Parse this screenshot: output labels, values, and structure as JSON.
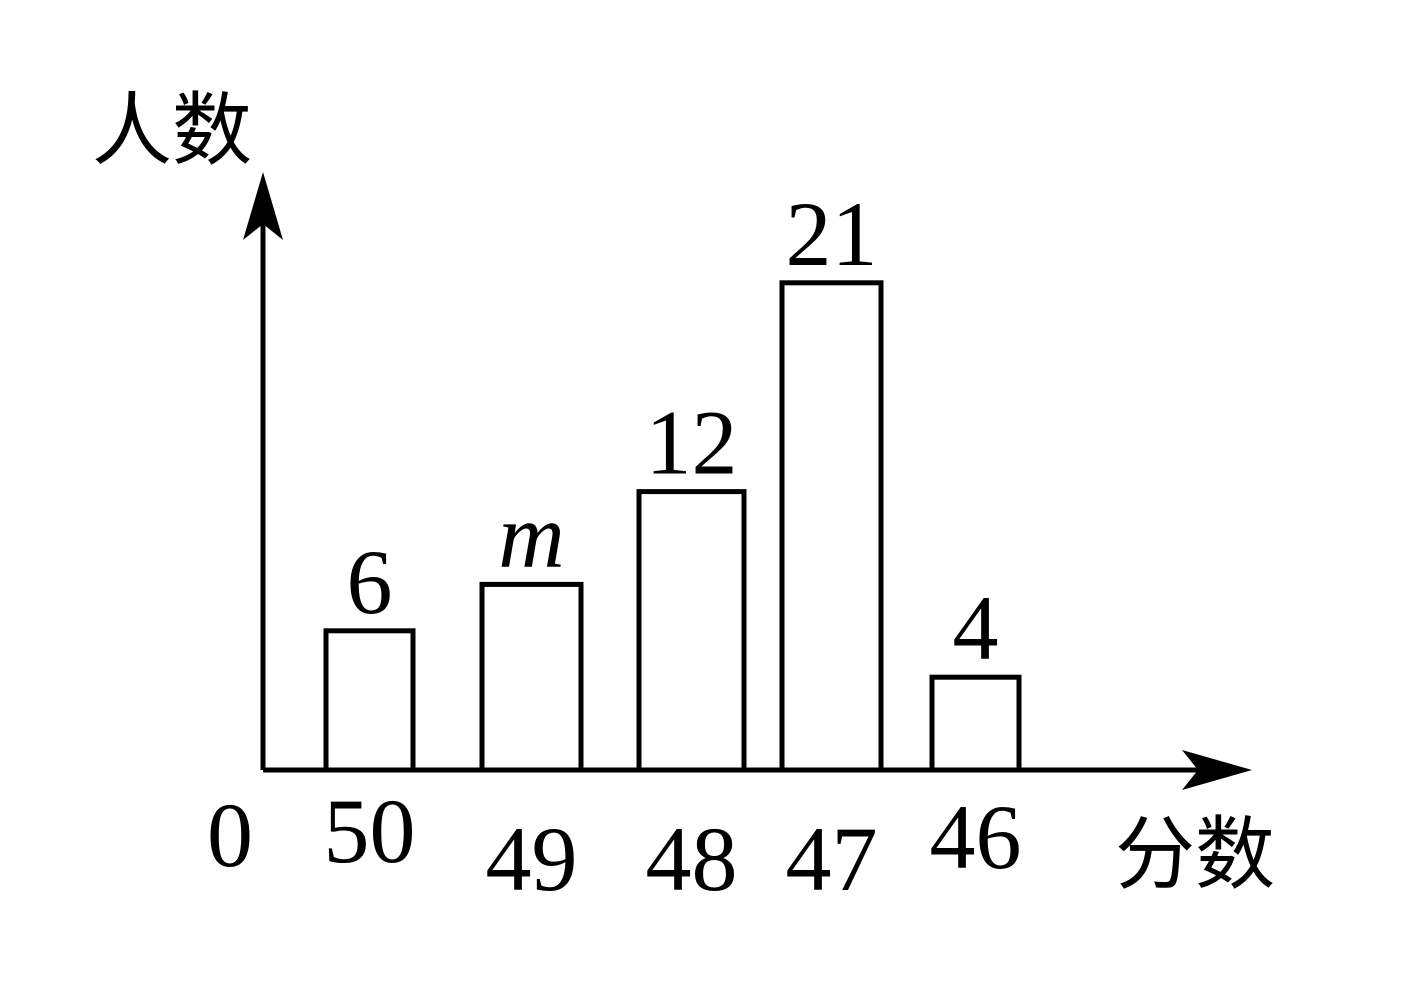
{
  "chart_data": {
    "type": "bar",
    "title": "",
    "xlabel": "分数",
    "ylabel": "人数",
    "origin_label": "0",
    "categories": [
      "50",
      "49",
      "48",
      "47",
      "46"
    ],
    "values": [
      6,
      8,
      12,
      21,
      4
    ],
    "value_labels": [
      "6",
      "m",
      "12",
      "21",
      "4"
    ],
    "italic_labels": [
      false,
      true,
      false,
      false,
      false
    ],
    "ylim": [
      0,
      25
    ],
    "grid": false,
    "legend": "none",
    "colors": {
      "bar_fill": "#ffffff",
      "bar_stroke": "#000000",
      "axis": "#000000"
    }
  }
}
